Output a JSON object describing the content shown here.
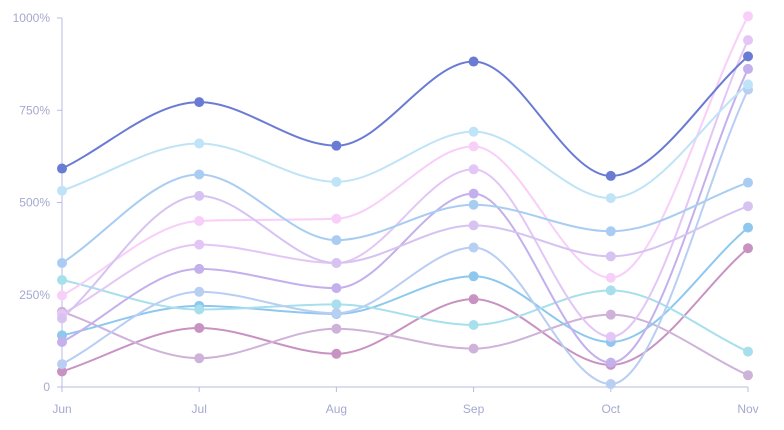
{
  "chart_data": {
    "type": "line",
    "categories": [
      "Jun",
      "Jul",
      "Aug",
      "Sep",
      "Oct",
      "Nov"
    ],
    "y_ticks": [
      "0",
      "250%",
      "500%",
      "750%",
      "1000%"
    ],
    "ylim": [
      0,
      1000
    ],
    "grid": false,
    "legend": "none",
    "smooth": true,
    "axis_color": "#b7bbe0",
    "series": [
      {
        "color": "#6a7bd4",
        "values": [
          592,
          772,
          654,
          882,
          572,
          896
        ]
      },
      {
        "color": "#bfe3f7",
        "values": [
          532,
          660,
          556,
          692,
          512,
          820
        ]
      },
      {
        "color": "#a9cdf2",
        "values": [
          336,
          576,
          398,
          494,
          422,
          554
        ]
      },
      {
        "color": "#d7c3f2",
        "values": [
          186,
          518,
          336,
          438,
          354,
          490
        ]
      },
      {
        "color": "#f8cff8",
        "values": [
          248,
          450,
          456,
          652,
          296,
          1005
        ]
      },
      {
        "color": "#e3c6f5",
        "values": [
          198,
          386,
          336,
          590,
          136,
          940
        ]
      },
      {
        "color": "#c3b0ec",
        "values": [
          122,
          320,
          268,
          524,
          66,
          862
        ]
      },
      {
        "color": "#b8cef3",
        "values": [
          62,
          258,
          200,
          378,
          8,
          806
        ]
      },
      {
        "color": "#a7e0ec",
        "values": [
          290,
          210,
          224,
          168,
          262,
          96
        ]
      },
      {
        "color": "#8ec8ee",
        "values": [
          140,
          220,
          198,
          300,
          122,
          432
        ]
      },
      {
        "color": "#cfb2d9",
        "values": [
          204,
          78,
          158,
          104,
          196,
          32
        ]
      },
      {
        "color": "#c893c2",
        "values": [
          42,
          160,
          90,
          238,
          60,
          376
        ]
      }
    ]
  }
}
